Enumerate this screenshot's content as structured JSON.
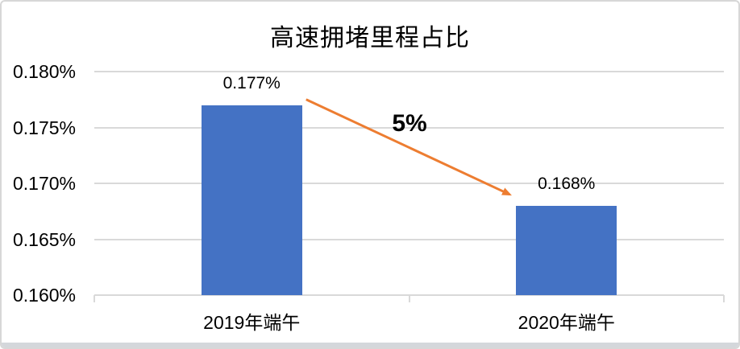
{
  "window": {
    "background": "#FFFFFF",
    "border_color": "#D7D7D7",
    "bottom_edge_color": "#D4D7DB"
  },
  "chart_data": {
    "type": "bar",
    "title": "高速拥堵里程占比",
    "categories": [
      "2019年端午",
      "2020年端午"
    ],
    "values": [
      0.177,
      0.168
    ],
    "value_labels": [
      "0.177%",
      "0.168%"
    ],
    "xlabel": "",
    "ylabel": "",
    "ylim": [
      0.16,
      0.18
    ],
    "ytick_step": 0.005,
    "yticks": [
      {
        "value": 0.18,
        "label": "0.180%"
      },
      {
        "value": 0.175,
        "label": "0.175%"
      },
      {
        "value": 0.17,
        "label": "0.170%"
      },
      {
        "value": 0.165,
        "label": "0.165%"
      },
      {
        "value": 0.16,
        "label": "0.160%"
      }
    ],
    "grid": "horizontal",
    "legend": "none",
    "annotation": {
      "text": "5%",
      "meaning": "decrease between 2019 and 2020 bars",
      "arrow": "from top of 2019 bar down to top of 2020 bar"
    },
    "colors": {
      "bar": "#4472C4",
      "arrow": "#ED7D31",
      "gridline": "#D9D9D9",
      "axis_line": "#D9D9D9",
      "text": "#000000"
    }
  }
}
